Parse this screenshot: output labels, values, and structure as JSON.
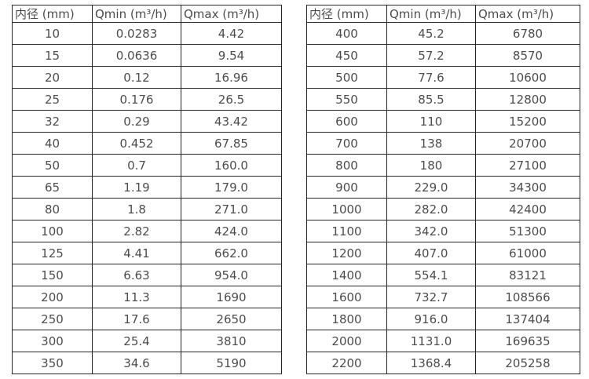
{
  "page": {
    "background_color": "#ffffff",
    "border_color": "#262626",
    "text_color": "#4d4d4d"
  },
  "tables": [
    {
      "name": "flow-table-small-diameters",
      "headers": [
        "内径 (mm)",
        "Qmin (m³/h)",
        "Qmax (m³/h)"
      ],
      "rows": [
        [
          "10",
          "0.0283",
          "4.42"
        ],
        [
          "15",
          "0.0636",
          "9.54"
        ],
        [
          "20",
          "0.12",
          "16.96"
        ],
        [
          "25",
          "0.176",
          "26.5"
        ],
        [
          "32",
          "0.29",
          "43.42"
        ],
        [
          "40",
          "0.452",
          "67.85"
        ],
        [
          "50",
          "0.7",
          "160.0"
        ],
        [
          "65",
          "1.19",
          "179.0"
        ],
        [
          "80",
          "1.8",
          "271.0"
        ],
        [
          "100",
          "2.82",
          "424.0"
        ],
        [
          "125",
          "4.41",
          "662.0"
        ],
        [
          "150",
          "6.63",
          "954.0"
        ],
        [
          "200",
          "11.3",
          "1690"
        ],
        [
          "250",
          "17.6",
          "2650"
        ],
        [
          "300",
          "25.4",
          "3810"
        ],
        [
          "350",
          "34.6",
          "5190"
        ]
      ]
    },
    {
      "name": "flow-table-large-diameters",
      "headers": [
        "内径 (mm)",
        "Qmin (m³/h)",
        "Qmax (m³/h)"
      ],
      "rows": [
        [
          "400",
          "45.2",
          "6780"
        ],
        [
          "450",
          "57.2",
          "8570"
        ],
        [
          "500",
          "77.6",
          "10600"
        ],
        [
          "550",
          "85.5",
          "12800"
        ],
        [
          "600",
          "110",
          "15200"
        ],
        [
          "700",
          "138",
          "20700"
        ],
        [
          "800",
          "180",
          "27100"
        ],
        [
          "900",
          "229.0",
          "34300"
        ],
        [
          "1000",
          "282.0",
          "42400"
        ],
        [
          "1100",
          "342.0",
          "51300"
        ],
        [
          "1200",
          "407.0",
          "61000"
        ],
        [
          "1400",
          "554.1",
          "83121"
        ],
        [
          "1600",
          "732.7",
          "108566"
        ],
        [
          "1800",
          "916.0",
          "137404"
        ],
        [
          "2000",
          "1131.0",
          "169635"
        ],
        [
          "2200",
          "1368.4",
          "205258"
        ]
      ]
    }
  ]
}
